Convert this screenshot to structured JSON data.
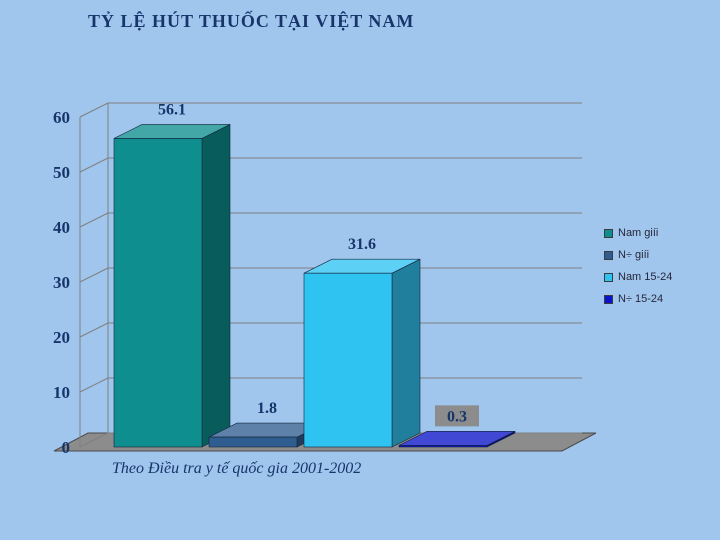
{
  "slide": {
    "title": "TỶ LỆ HÚT THUỐC TẠI VIỆT NAM",
    "caption": "Theo Điều tra y tế quốc gia 2001-2002",
    "background_color": "#a0c6ee",
    "title_color": "#17356b"
  },
  "legend": {
    "items": [
      {
        "label": "Nam giíi",
        "color": "#0e8e8e"
      },
      {
        "label": "N÷ giíi",
        "color": "#2f5d8f"
      },
      {
        "label": "Nam 15-24",
        "color": "#2fc3f2"
      },
      {
        "label": "N÷ 15-24",
        "color": "#0a14c8"
      }
    ]
  },
  "chart_data": {
    "type": "bar",
    "style": "3d",
    "title": "TỶ LỆ HÚT THUỐC TẠI VIỆT NAM",
    "categories": [
      "Nam giíi",
      "N÷ giíi",
      "Nam 15-24",
      "N÷ 15-24"
    ],
    "values": [
      56.1,
      1.8,
      31.6,
      0.3
    ],
    "value_labels": [
      "56.1",
      "1.8",
      "31.6",
      "0.3"
    ],
    "colors": [
      "#0e8e8e",
      "#2f5d8f",
      "#2fc3f2",
      "#0a14c8"
    ],
    "yticks": [
      0,
      10,
      20,
      30,
      40,
      50,
      60
    ],
    "ylim": [
      0,
      60
    ],
    "xlabel": "",
    "ylabel": "",
    "grid": true,
    "legend_position": "right",
    "boxed_label_index": 3,
    "floor_color": "#8c8c8c",
    "gridline_color": "#7f7f7f",
    "caption": "Theo Điều tra y tế quốc gia 2001-2002"
  }
}
